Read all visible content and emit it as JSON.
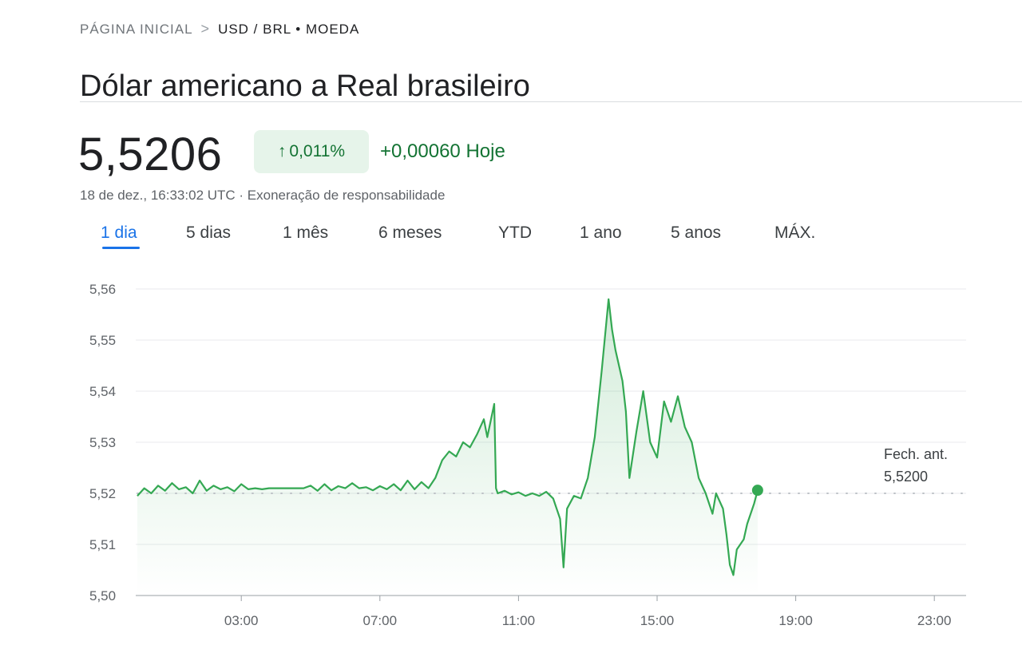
{
  "breadcrumb": {
    "home": "PÁGINA INICIAL",
    "separator": ">",
    "current": "USD / BRL • MOEDA"
  },
  "title": "Dólar americano a Real brasileiro",
  "quote": {
    "price": "5,5206",
    "change_icon": "arrow-up-icon",
    "change_arrow": "↑",
    "change_pct": "0,011%",
    "change_abs": "+0,00060 Hoje",
    "timestamp": "18 de dez., 16:33:02 UTC",
    "timestamp_separator": " · ",
    "disclaimer": "Exoneração de responsabilidade"
  },
  "tabs": [
    {
      "label": "1 dia",
      "active": true
    },
    {
      "label": "5 dias",
      "active": false
    },
    {
      "label": "1 mês",
      "active": false
    },
    {
      "label": "6 meses",
      "active": false
    },
    {
      "label": "YTD",
      "active": false
    },
    {
      "label": "1 ano",
      "active": false
    },
    {
      "label": "5 anos",
      "active": false
    },
    {
      "label": "MÁX.",
      "active": false
    }
  ],
  "colors": {
    "up": "#34a853",
    "up_text": "#137333",
    "badge_bg": "#e6f4ea",
    "active_tab": "#1a73e8",
    "gridline": "#e8eaed",
    "axis": "#9aa0a6",
    "dotted": "#bdc1c6"
  },
  "chart_data": {
    "type": "area",
    "title": "",
    "xlabel": "",
    "ylabel": "",
    "ylim": [
      5.5,
      5.56
    ],
    "xlim": [
      "00:00",
      "24:00"
    ],
    "y_ticks": [
      "5,56",
      "5,55",
      "5,54",
      "5,53",
      "5,52",
      "5,51",
      "5,50"
    ],
    "y_tick_values": [
      5.56,
      5.55,
      5.54,
      5.53,
      5.52,
      5.51,
      5.5
    ],
    "x_ticks": [
      "03:00",
      "07:00",
      "11:00",
      "15:00",
      "19:00",
      "23:00"
    ],
    "x_tick_values": [
      3,
      7,
      11,
      15,
      19,
      23
    ],
    "grid": true,
    "previous_close": {
      "label": "Fech. ant.",
      "value_text": "5,5200",
      "value": 5.52
    },
    "series": [
      {
        "values": [
          [
            0.0,
            5.5195
          ],
          [
            0.2,
            5.521
          ],
          [
            0.4,
            5.52
          ],
          [
            0.6,
            5.5215
          ],
          [
            0.8,
            5.5205
          ],
          [
            1.0,
            5.522
          ],
          [
            1.2,
            5.5208
          ],
          [
            1.4,
            5.5212
          ],
          [
            1.6,
            5.52
          ],
          [
            1.8,
            5.5225
          ],
          [
            2.0,
            5.5205
          ],
          [
            2.2,
            5.5215
          ],
          [
            2.4,
            5.5208
          ],
          [
            2.6,
            5.5212
          ],
          [
            2.8,
            5.5204
          ],
          [
            3.0,
            5.5218
          ],
          [
            3.2,
            5.5208
          ],
          [
            3.4,
            5.521
          ],
          [
            3.6,
            5.5208
          ],
          [
            3.8,
            5.521
          ],
          [
            4.2,
            5.521
          ],
          [
            4.8,
            5.521
          ],
          [
            5.0,
            5.5215
          ],
          [
            5.2,
            5.5205
          ],
          [
            5.4,
            5.5218
          ],
          [
            5.6,
            5.5206
          ],
          [
            5.8,
            5.5214
          ],
          [
            6.0,
            5.521
          ],
          [
            6.2,
            5.522
          ],
          [
            6.4,
            5.521
          ],
          [
            6.6,
            5.5212
          ],
          [
            6.8,
            5.5206
          ],
          [
            7.0,
            5.5214
          ],
          [
            7.2,
            5.5208
          ],
          [
            7.4,
            5.5218
          ],
          [
            7.6,
            5.5206
          ],
          [
            7.8,
            5.5225
          ],
          [
            8.0,
            5.5208
          ],
          [
            8.2,
            5.5222
          ],
          [
            8.4,
            5.521
          ],
          [
            8.6,
            5.523
          ],
          [
            8.8,
            5.5265
          ],
          [
            9.0,
            5.5282
          ],
          [
            9.2,
            5.5272
          ],
          [
            9.4,
            5.53
          ],
          [
            9.6,
            5.529
          ],
          [
            9.8,
            5.5315
          ],
          [
            10.0,
            5.5345
          ],
          [
            10.1,
            5.531
          ],
          [
            10.3,
            5.5375
          ],
          [
            10.35,
            5.521
          ],
          [
            10.4,
            5.52
          ],
          [
            10.6,
            5.5205
          ],
          [
            10.8,
            5.5198
          ],
          [
            11.0,
            5.5202
          ],
          [
            11.2,
            5.5195
          ],
          [
            11.4,
            5.52
          ],
          [
            11.6,
            5.5195
          ],
          [
            11.8,
            5.5203
          ],
          [
            12.0,
            5.519
          ],
          [
            12.2,
            5.515
          ],
          [
            12.3,
            5.5055
          ],
          [
            12.4,
            5.517
          ],
          [
            12.6,
            5.5195
          ],
          [
            12.8,
            5.519
          ],
          [
            13.0,
            5.523
          ],
          [
            13.2,
            5.531
          ],
          [
            13.4,
            5.544
          ],
          [
            13.6,
            5.558
          ],
          [
            13.7,
            5.552
          ],
          [
            13.8,
            5.548
          ],
          [
            14.0,
            5.542
          ],
          [
            14.1,
            5.536
          ],
          [
            14.2,
            5.523
          ],
          [
            14.4,
            5.532
          ],
          [
            14.6,
            5.54
          ],
          [
            14.8,
            5.53
          ],
          [
            15.0,
            5.527
          ],
          [
            15.2,
            5.538
          ],
          [
            15.4,
            5.534
          ],
          [
            15.6,
            5.539
          ],
          [
            15.8,
            5.533
          ],
          [
            16.0,
            5.53
          ],
          [
            16.2,
            5.523
          ],
          [
            16.4,
            5.52
          ],
          [
            16.6,
            5.516
          ],
          [
            16.7,
            5.52
          ],
          [
            16.9,
            5.517
          ],
          [
            17.0,
            5.512
          ],
          [
            17.1,
            5.506
          ],
          [
            17.2,
            5.504
          ],
          [
            17.3,
            5.509
          ],
          [
            17.5,
            5.511
          ],
          [
            17.6,
            5.514
          ],
          [
            17.8,
            5.518
          ],
          [
            17.9,
            5.5206
          ]
        ]
      }
    ]
  }
}
